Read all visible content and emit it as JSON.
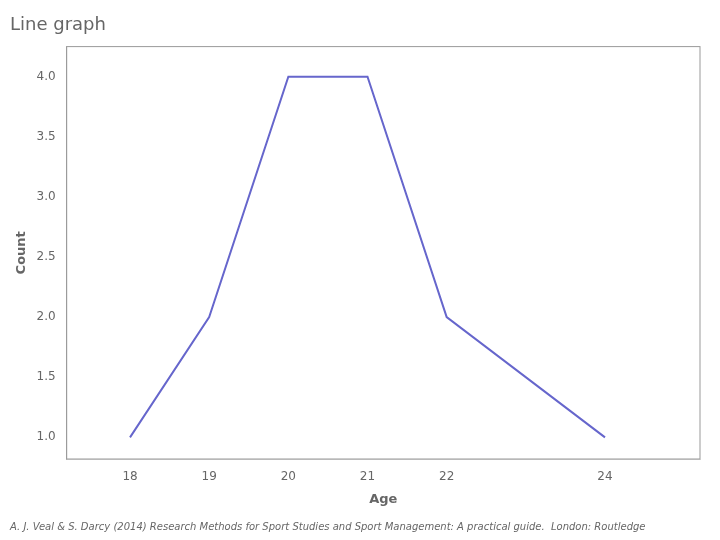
{
  "chart_data": {
    "type": "line",
    "title": "Line graph",
    "x": [
      18,
      19,
      20,
      21,
      22,
      24
    ],
    "values": [
      1.0,
      2.0,
      4.0,
      4.0,
      2.0,
      1.0
    ],
    "color": "#6666cc",
    "xlabel": "Age",
    "ylabel": "Count",
    "xlim": [
      17.2,
      25.2
    ],
    "ylim": [
      0.82,
      4.25
    ],
    "xticks": [
      18,
      19,
      20,
      21,
      22,
      24
    ],
    "yticks": [
      {
        "value": 1.0,
        "label": "1.0"
      },
      {
        "value": 1.5,
        "label": "1.5"
      },
      {
        "value": 2.0,
        "label": "2.0"
      },
      {
        "value": 2.5,
        "label": "2.5"
      },
      {
        "value": 3.0,
        "label": "3.0"
      },
      {
        "value": 3.5,
        "label": "3.5"
      },
      {
        "value": 4.0,
        "label": "4.0"
      }
    ],
    "grid": false,
    "footnote": "A. J. Veal & S. Darcy (2014) Research Methods for Sport Studies and Sport Management: A practical guide.  London: Routledge"
  }
}
